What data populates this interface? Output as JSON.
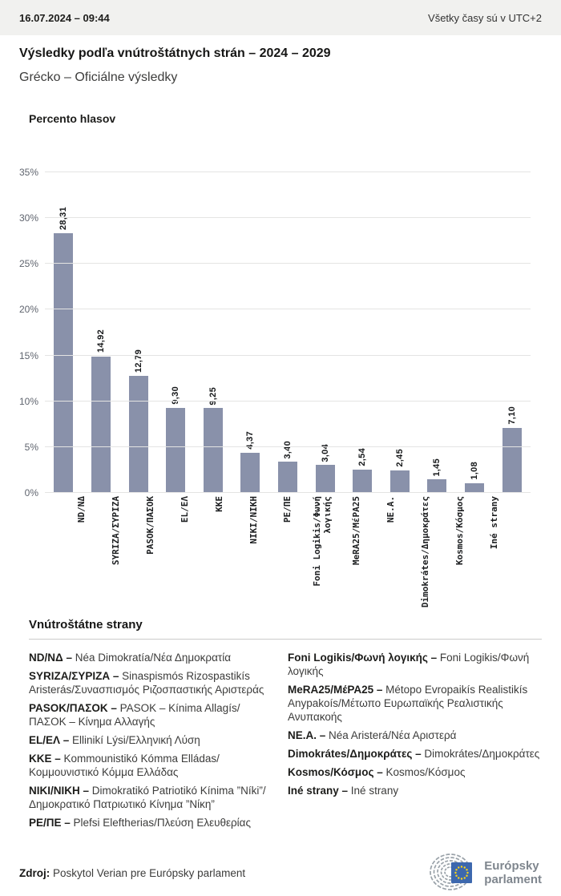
{
  "header": {
    "datetime": "16.07.2024 – 09:44",
    "timezone_note": "Všetky časy sú v UTC+2"
  },
  "title": "Výsledky podľa vnútroštátnych strán – 2024 – 2029",
  "subtitle": "Grécko – Oficiálne výsledky",
  "chart_data": {
    "type": "bar",
    "title": "Percento hlasov",
    "categories": [
      "ND/NΔ",
      "SYRIZA/ΣΥΡΙΖΑ",
      "PASOK/ΠΑΣΟΚ",
      "EL/ΕΛ",
      "KKE",
      "NIKI/NIKH",
      "PE/ΠΕ",
      "Foni Logikis/Φωνή\nλογικής",
      "MeRA25/ΜέΡΑ25",
      "NE.A.",
      "Dimokrátes/Δημοκράτες",
      "Kosmos/Κόσμος",
      "Iné strany"
    ],
    "values": [
      28.31,
      14.92,
      12.79,
      9.3,
      9.25,
      4.37,
      3.4,
      3.04,
      2.54,
      2.45,
      1.45,
      1.08,
      7.1
    ],
    "value_labels": [
      "28,31",
      "14,92",
      "12,79",
      "9,30",
      "9,25",
      "4,37",
      "3,40",
      "3,04",
      "2,54",
      "2,45",
      "1,45",
      "1,08",
      "7,10"
    ],
    "ylabel": "Percento hlasov",
    "xlabel": "",
    "ylim": [
      0,
      35
    ],
    "yticks": [
      {
        "value": 0,
        "label": "0%"
      },
      {
        "value": 5,
        "label": "5%"
      },
      {
        "value": 10,
        "label": "10%"
      },
      {
        "value": 15,
        "label": "15%"
      },
      {
        "value": 20,
        "label": "20%"
      },
      {
        "value": 25,
        "label": "25%"
      },
      {
        "value": 30,
        "label": "30%"
      },
      {
        "value": 35,
        "label": "35%"
      }
    ],
    "grid": true,
    "legend_position": "none",
    "bar_color": "#8991AA"
  },
  "legend": {
    "heading": "Vnútroštátne strany",
    "columns": [
      [
        {
          "term": "ND/NΔ –",
          "definition": "Néa Dimokratía/Νέα Δημοκρατία"
        },
        {
          "term": "SYRIZA/ΣΥΡΙΖΑ –",
          "definition": "Sinaspismós Rizospastikís Aristerás/Συνασπισμός Ριζοσπαστικής Αριστεράς"
        },
        {
          "term": "PASOK/ΠΑΣΟΚ –",
          "definition": "PASOK – Kínima Allagís/ΠΑΣΟΚ – Κίνημα Αλλαγής"
        },
        {
          "term": "EL/ΕΛ –",
          "definition": "Ellinikí Lýsi/Ελληνική Λύση"
        },
        {
          "term": "KKE –",
          "definition": "Kommounistikó Kómma Elládas/Κομμουνιστικό Κόμμα Ελλάδας"
        },
        {
          "term": "NIKI/NIKH –",
          "definition": "Dimokratikó Patriotikó Kínima ”Níki”/Δημοκρατικό Πατριωτικό Κίνημα ”Νίκη”"
        },
        {
          "term": "PE/ΠΕ –",
          "definition": "Plefsi Eleftherias/Πλεύση Ελευθερίας"
        }
      ],
      [
        {
          "term": "Foni Logikis/Φωνή λογικής –",
          "definition": "Foni Logikis/Φωνή λογικής"
        },
        {
          "term": "MeRA25/ΜέΡΑ25 –",
          "definition": "Métopo Evropaikís Realistikís Anypakoís/Μέτωπο Ευρωπαϊκής Ρεαλιστικής Ανυπακοής"
        },
        {
          "term": "NE.A. –",
          "definition": "Néa Aristerá/Νέα Αριστερά"
        },
        {
          "term": "Dimokrátes/Δημοκράτες –",
          "definition": "Dimokrátes/Δημοκράτες"
        },
        {
          "term": "Kosmos/Κόσμος –",
          "definition": "Kosmos/Κόσμος"
        },
        {
          "term": "Iné strany –",
          "definition": "Iné strany"
        }
      ]
    ]
  },
  "source": {
    "label": "Zdroj:",
    "text": "Poskytol Verian pre Európsky parlament"
  },
  "logo": {
    "line1": "Európsky",
    "line2": "parlament",
    "flag_color": "#3D68AE",
    "star_color": "#FFD617",
    "hemicycle_color": "#9AA2A9"
  }
}
